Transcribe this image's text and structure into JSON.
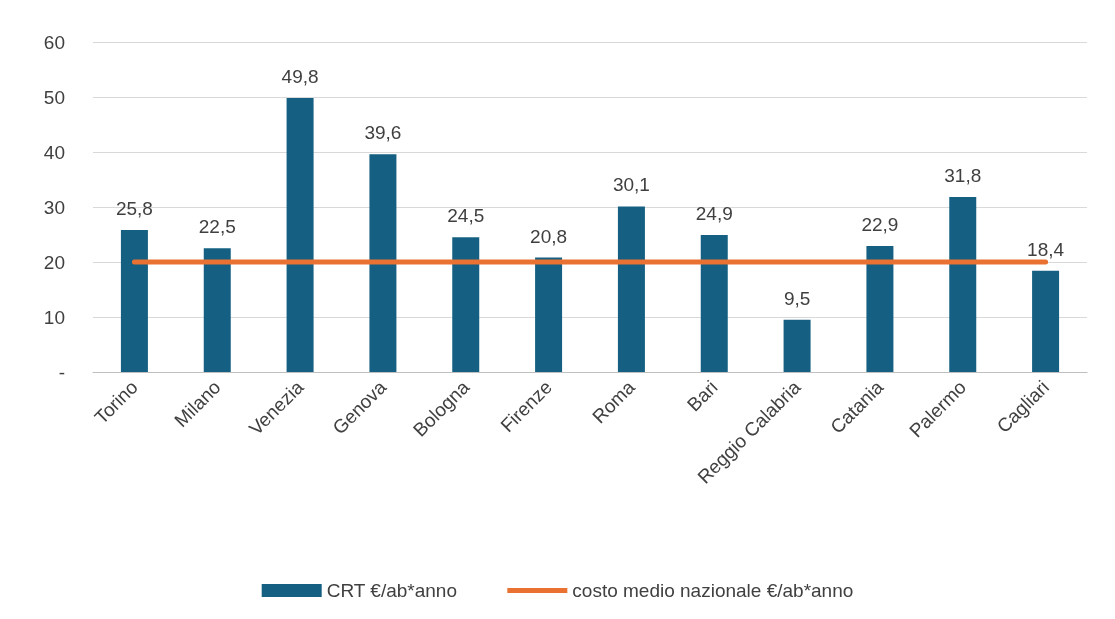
{
  "chart_data": {
    "type": "bar",
    "categories": [
      "Torino",
      "Milano",
      "Venezia",
      "Genova",
      "Bologna",
      "Firenze",
      "Roma",
      "Bari",
      "Reggio Calabria",
      "Catania",
      "Palermo",
      "Cagliari"
    ],
    "series": [
      {
        "name": "CRT €/ab*anno",
        "color": "#156082",
        "values": [
          25.8,
          22.5,
          49.8,
          39.6,
          24.5,
          20.8,
          30.1,
          24.9,
          9.5,
          22.9,
          31.8,
          18.4
        ],
        "value_labels": [
          "25,8",
          "22,5",
          "49,8",
          "39,6",
          "24,5",
          "20,8",
          "30,1",
          "24,9",
          "9,5",
          "22,9",
          "31,8",
          "18,4"
        ]
      },
      {
        "name": "costo medio nazionale €/ab*anno",
        "type": "line",
        "color": "#e97132",
        "values": [
          20,
          20,
          20,
          20,
          20,
          20,
          20,
          20,
          20,
          20,
          20,
          20
        ]
      }
    ],
    "ylim": [
      0,
      60
    ],
    "yticks": [
      {
        "value": 0,
        "label": "-"
      },
      10,
      20,
      30,
      40,
      50,
      60
    ],
    "grid": "y",
    "legend": "bottom",
    "marker": "none"
  }
}
